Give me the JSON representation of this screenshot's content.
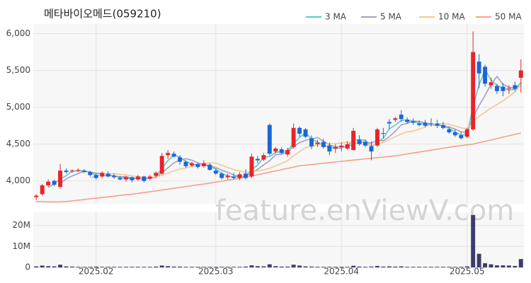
{
  "chart_data": {
    "type": "candlestick",
    "title": "메타바이오메드(059210)",
    "watermark": "feature.enViewV.com",
    "categories": [
      null,
      null,
      null,
      null,
      null,
      null,
      null,
      null,
      null,
      null,
      "2025.02",
      null,
      null,
      null,
      null,
      null,
      null,
      null,
      null,
      null,
      null,
      null,
      null,
      null,
      null,
      null,
      null,
      null,
      null,
      null,
      "2025.03",
      null,
      null,
      null,
      null,
      null,
      null,
      null,
      null,
      null,
      null,
      null,
      null,
      null,
      null,
      null,
      null,
      null,
      null,
      null,
      null,
      "2025.04",
      null,
      null,
      null,
      null,
      null,
      null,
      null,
      null,
      null,
      null,
      null,
      null,
      null,
      null,
      null,
      null,
      null,
      null,
      null,
      null,
      "2025.05",
      null,
      null,
      null,
      null,
      null,
      null,
      null,
      null,
      null
    ],
    "open": [
      3780,
      3820,
      3940,
      4000,
      3920,
      4140,
      4130,
      4140,
      4140,
      4120,
      4080,
      4060,
      4100,
      4070,
      4040,
      4020,
      4050,
      4020,
      4060,
      4030,
      4070,
      4100,
      4350,
      4370,
      4320,
      4260,
      4210,
      4230,
      4200,
      4220,
      4140,
      4100,
      4050,
      4060,
      4040,
      4100,
      4060,
      4300,
      4290,
      4760,
      4400,
      4430,
      4360,
      4460,
      4720,
      4700,
      4580,
      4500,
      4530,
      4480,
      4440,
      4460,
      4440,
      4420,
      4560,
      4530,
      4470,
      4480,
      4650,
      4800,
      4830,
      4900,
      4830,
      4810,
      4780,
      4790,
      4780,
      4780,
      4760,
      4700,
      4660,
      4620,
      4600,
      4700,
      5620,
      5550,
      5300,
      5290,
      5280,
      5260,
      5300,
      5400
    ],
    "high": [
      3820,
      3960,
      4020,
      4020,
      4230,
      4170,
      4160,
      4170,
      4160,
      4140,
      4110,
      4130,
      4130,
      4100,
      4070,
      4070,
      4060,
      4080,
      4070,
      4080,
      4130,
      4380,
      4420,
      4400,
      4350,
      4280,
      4260,
      4250,
      4280,
      4240,
      4170,
      4120,
      4100,
      4110,
      4120,
      4160,
      4370,
      4340,
      4380,
      4780,
      4460,
      4460,
      4450,
      4780,
      4740,
      4720,
      4620,
      4560,
      4570,
      4520,
      4500,
      4520,
      4540,
      4720,
      4620,
      4560,
      4540,
      4720,
      4720,
      4840,
      4870,
      4960,
      4860,
      4850,
      4820,
      4830,
      4850,
      4830,
      4800,
      4740,
      4700,
      4660,
      4720,
      6030,
      5720,
      5580,
      5400,
      5320,
      5330,
      5300,
      5350,
      5650
    ],
    "low": [
      3740,
      3800,
      3920,
      3930,
      3900,
      4100,
      4110,
      4120,
      4110,
      4060,
      4020,
      4040,
      4050,
      4030,
      4010,
      3990,
      3980,
      4000,
      3980,
      4010,
      4040,
      4090,
      4300,
      4320,
      4220,
      4180,
      4190,
      4170,
      4180,
      4140,
      4080,
      4020,
      4020,
      4020,
      4010,
      4020,
      4040,
      4240,
      4270,
      4350,
      4370,
      4360,
      4330,
      4440,
      4600,
      4580,
      4430,
      4460,
      4440,
      4350,
      4380,
      4400,
      4420,
      4410,
      4480,
      4460,
      4280,
      4460,
      4580,
      4700,
      4800,
      4800,
      4780,
      4760,
      4740,
      4730,
      4740,
      4720,
      4700,
      4640,
      4600,
      4560,
      4580,
      4680,
      5260,
      5280,
      5250,
      5180,
      5150,
      5180,
      5220,
      5200
    ],
    "close": [
      3800,
      3940,
      3990,
      3950,
      4140,
      4120,
      4140,
      4150,
      4120,
      4080,
      4040,
      4110,
      4060,
      4050,
      4020,
      4050,
      4010,
      4060,
      4000,
      4060,
      4110,
      4340,
      4380,
      4330,
      4260,
      4200,
      4240,
      4190,
      4240,
      4150,
      4100,
      4040,
      4070,
      4040,
      4090,
      4040,
      4330,
      4280,
      4350,
      4370,
      4440,
      4380,
      4420,
      4720,
      4640,
      4600,
      4470,
      4520,
      4460,
      4400,
      4460,
      4480,
      4500,
      4680,
      4500,
      4480,
      4400,
      4700,
      4640,
      4780,
      4850,
      4840,
      4800,
      4790,
      4760,
      4750,
      4770,
      4750,
      4720,
      4660,
      4620,
      4580,
      4700,
      5750,
      5460,
      5320,
      5340,
      5220,
      5220,
      5260,
      5250,
      5500
    ],
    "up_color": "#e8242a",
    "down_color": "#1a66d8",
    "ylim": [
      3690,
      6130
    ],
    "yticks": [
      {
        "value": 4000,
        "label": "4,000"
      },
      {
        "value": 4500,
        "label": "4,500"
      },
      {
        "value": 5000,
        "label": "5,000"
      },
      {
        "value": 5500,
        "label": "5,500"
      },
      {
        "value": 6000,
        "label": "6,000"
      }
    ],
    "grid": true,
    "series": [
      {
        "name": "3 MA",
        "color": "#5bc8cc",
        "values": [
          null,
          null,
          3910,
          3960,
          4027,
          4070,
          4133,
          4137,
          4137,
          4117,
          4080,
          4077,
          4070,
          4073,
          4043,
          4040,
          4027,
          4040,
          4023,
          4040,
          4057,
          4170,
          4277,
          4350,
          4323,
          4263,
          4233,
          4210,
          4223,
          4193,
          4163,
          4097,
          4070,
          4050,
          4067,
          4057,
          4153,
          4217,
          4320,
          4333,
          4387,
          4397,
          4413,
          4507,
          4593,
          4653,
          4570,
          4530,
          4483,
          4460,
          4440,
          4447,
          4480,
          4553,
          4560,
          4553,
          4460,
          4527,
          4580,
          4707,
          4757,
          4823,
          4830,
          4810,
          4783,
          4767,
          4760,
          4757,
          4747,
          4710,
          4667,
          4620,
          4633,
          5010,
          5303,
          5510,
          5373,
          5293,
          5260,
          5233,
          5243,
          5337
        ]
      },
      {
        "name": "5 MA",
        "color": "#a89cc8",
        "values": [
          null,
          null,
          null,
          null,
          3964,
          4028,
          4068,
          4100,
          4134,
          4122,
          4106,
          4100,
          4082,
          4068,
          4056,
          4058,
          4038,
          4038,
          4028,
          4036,
          4048,
          4114,
          4178,
          4244,
          4284,
          4302,
          4282,
          4244,
          4226,
          4204,
          4184,
          4144,
          4120,
          4080,
          4068,
          4056,
          4114,
          4156,
          4218,
          4274,
          4354,
          4364,
          4392,
          4466,
          4520,
          4552,
          4570,
          4590,
          4538,
          4490,
          4462,
          4464,
          4460,
          4504,
          4524,
          4528,
          4512,
          4552,
          4544,
          4600,
          4674,
          4762,
          4782,
          4812,
          4808,
          4788,
          4774,
          4764,
          4750,
          4730,
          4704,
          4666,
          4656,
          4862,
          5022,
          5162,
          5314,
          5418,
          5312,
          5272,
          5258,
          5290
        ]
      },
      {
        "name": "10 MA",
        "color": "#f2c893",
        "values": [
          null,
          null,
          null,
          null,
          null,
          null,
          null,
          null,
          null,
          4043,
          4067,
          4084,
          4091,
          4101,
          4089,
          4082,
          4069,
          4060,
          4048,
          4046,
          4053,
          4076,
          4108,
          4136,
          4160,
          4175,
          4198,
          4211,
          4235,
          4244,
          4243,
          4213,
          4182,
          4153,
          4136,
          4120,
          4129,
          4138,
          4149,
          4171,
          4205,
          4239,
          4274,
          4342,
          4397,
          4453,
          4467,
          4491,
          4502,
          4505,
          4507,
          4517,
          4525,
          4521,
          4507,
          4495,
          4488,
          4506,
          4524,
          4562,
          4601,
          4637,
          4667,
          4678,
          4704,
          4731,
          4768,
          4773,
          4781,
          4769,
          4746,
          4720,
          4710,
          4806,
          4876,
          4933,
          4990,
          5037,
          5087,
          5147,
          5210,
          5302
        ]
      },
      {
        "name": "50 MA",
        "color": "#f4a08c",
        "values": [
          3720,
          3718,
          3716,
          3715,
          3716,
          3720,
          3729,
          3738,
          3747,
          3757,
          3766,
          3775,
          3784,
          3793,
          3803,
          3812,
          3821,
          3830,
          3842,
          3853,
          3865,
          3877,
          3888,
          3900,
          3912,
          3923,
          3935,
          3947,
          3958,
          3970,
          3983,
          3997,
          4010,
          4023,
          4037,
          4050,
          4067,
          4084,
          4102,
          4119,
          4136,
          4153,
          4170,
          4188,
          4205,
          4214,
          4222,
          4231,
          4240,
          4248,
          4257,
          4266,
          4274,
          4283,
          4291,
          4300,
          4308,
          4316,
          4324,
          4332,
          4340,
          4353,
          4366,
          4379,
          4392,
          4405,
          4418,
          4431,
          4444,
          4457,
          4470,
          4480,
          4490,
          4500,
          4519,
          4538,
          4556,
          4575,
          4594,
          4613,
          4631,
          4650
        ]
      }
    ],
    "volume": {
      "color": "#3d3d6b",
      "ylim": [
        0,
        26300000
      ],
      "yticks": [
        0,
        {
          "value": 10000000,
          "label": "10M"
        },
        {
          "value": 20000000,
          "label": "20M"
        }
      ],
      "values": [
        500000,
        900000,
        600000,
        500000,
        1300000,
        500000,
        400000,
        300000,
        300000,
        300000,
        400000,
        300000,
        300000,
        300000,
        300000,
        300000,
        300000,
        300000,
        300000,
        300000,
        400000,
        900000,
        600000,
        400000,
        400000,
        300000,
        300000,
        300000,
        300000,
        300000,
        300000,
        300000,
        300000,
        300000,
        300000,
        400000,
        1000000,
        600000,
        500000,
        1500000,
        600000,
        400000,
        400000,
        1300000,
        900000,
        500000,
        400000,
        300000,
        300000,
        300000,
        300000,
        300000,
        300000,
        800000,
        400000,
        300000,
        400000,
        700000,
        400000,
        500000,
        400000,
        500000,
        300000,
        300000,
        300000,
        300000,
        300000,
        300000,
        300000,
        300000,
        300000,
        300000,
        500000,
        25000000,
        6500000,
        2000000,
        1500000,
        1000000,
        1000000,
        900000,
        700000,
        4000000
      ]
    }
  }
}
